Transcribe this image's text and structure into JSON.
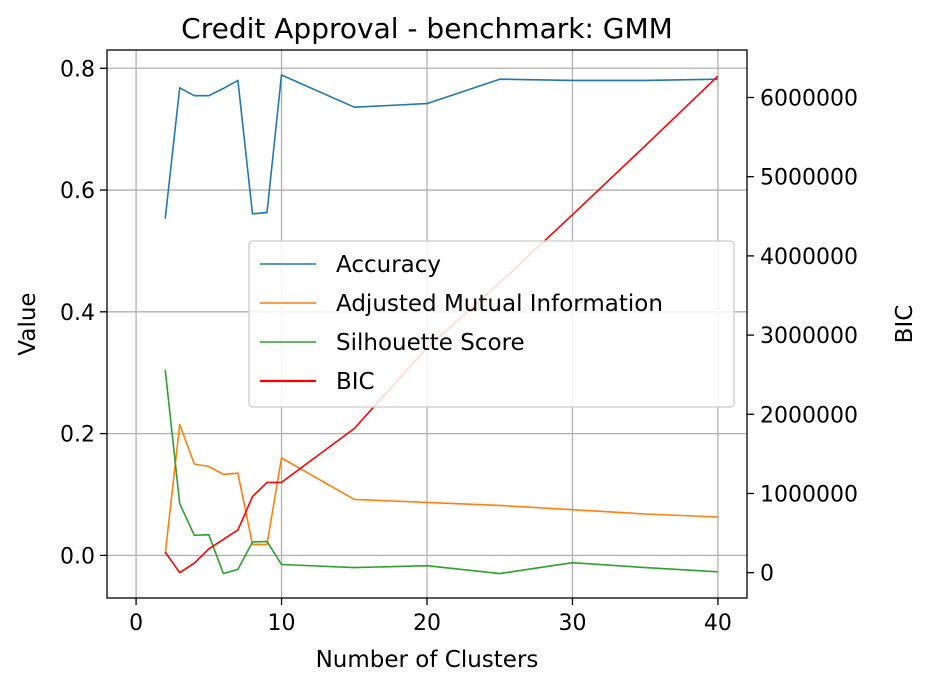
{
  "chart_data": {
    "type": "line",
    "title": "Credit Approval - benchmark: GMM",
    "xlabel": "Number of Clusters",
    "ylabel": "Value",
    "y2label": "BIC",
    "xlim": [
      -2,
      42
    ],
    "ylim": [
      -0.07,
      0.83
    ],
    "y2lim": [
      -320000,
      6600000
    ],
    "xticks": [
      0,
      10,
      20,
      30,
      40
    ],
    "yticks": [
      0.0,
      0.2,
      0.4,
      0.6,
      0.8
    ],
    "y2ticks": [
      0,
      1000000,
      2000000,
      3000000,
      4000000,
      5000000,
      6000000
    ],
    "grid": true,
    "legend_position": "center-right",
    "x": [
      2,
      3,
      4,
      5,
      6,
      7,
      8,
      9,
      10,
      15,
      20,
      25,
      30,
      35,
      40
    ],
    "series": [
      {
        "name": "Accuracy",
        "axis": "left",
        "color": "#1f77b4",
        "values": [
          0.553,
          0.768,
          0.755,
          0.755,
          0.767,
          0.78,
          0.561,
          0.563,
          0.789,
          0.736,
          0.742,
          0.782,
          0.78,
          0.78,
          0.782
        ]
      },
      {
        "name": "Adjusted Mutual Information",
        "axis": "left",
        "color": "#ff7f0e",
        "values": [
          0.002,
          0.215,
          0.15,
          0.146,
          0.133,
          0.135,
          0.018,
          0.018,
          0.16,
          0.092,
          0.087,
          0.082,
          0.075,
          0.068,
          0.063
        ]
      },
      {
        "name": "Silhouette Score",
        "axis": "left",
        "color": "#2ca02c",
        "values": [
          0.305,
          0.085,
          0.033,
          0.034,
          -0.03,
          -0.023,
          0.022,
          0.023,
          -0.015,
          -0.02,
          -0.017,
          -0.03,
          -0.012,
          -0.02,
          -0.027
        ]
      },
      {
        "name": "BIC",
        "axis": "right",
        "color": "#ff0000",
        "values": [
          260000,
          0,
          120000,
          300000,
          420000,
          540000,
          960000,
          1140000,
          1140000,
          1820000,
          2840000,
          3660000,
          4520000,
          5390000,
          6270000
        ]
      }
    ]
  }
}
